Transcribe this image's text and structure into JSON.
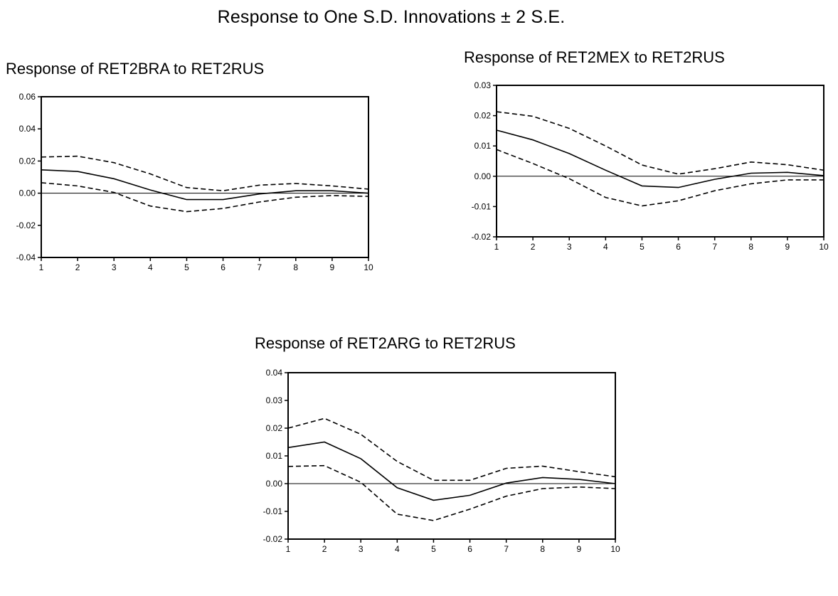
{
  "title": "Response to One S.D. Innovations ± 2 S.E.",
  "chart_data": [
    {
      "type": "line",
      "title": "Response of RET2BRA to RET2RUS",
      "x": [
        1,
        2,
        3,
        4,
        5,
        6,
        7,
        8,
        9,
        10
      ],
      "xlim": [
        1,
        10
      ],
      "ylim": [
        -0.04,
        0.06
      ],
      "yticks": [
        -0.04,
        -0.02,
        0.0,
        0.02,
        0.04,
        0.06
      ],
      "ytick_labels": [
        "-0.04",
        "-0.02",
        "0.00",
        "0.02",
        "0.04",
        "0.06"
      ],
      "xtick_labels": [
        "1",
        "2",
        "3",
        "4",
        "5",
        "6",
        "7",
        "8",
        "9",
        "10"
      ],
      "grid": false,
      "series": [
        {
          "style": "solid",
          "values": [
            0.0145,
            0.0135,
            0.009,
            0.002,
            -0.004,
            -0.004,
            -0.0005,
            0.0015,
            0.0015,
            0.0
          ]
        },
        {
          "style": "dashed",
          "values": [
            0.0225,
            0.023,
            0.019,
            0.012,
            0.0035,
            0.0015,
            0.005,
            0.006,
            0.0045,
            0.0025
          ]
        },
        {
          "style": "dashed",
          "values": [
            0.0065,
            0.0045,
            0.0005,
            -0.008,
            -0.0115,
            -0.0095,
            -0.0055,
            -0.0025,
            -0.0015,
            -0.002
          ]
        }
      ]
    },
    {
      "type": "line",
      "title": "Response of RET2MEX to RET2RUS",
      "x": [
        1,
        2,
        3,
        4,
        5,
        6,
        7,
        8,
        9,
        10
      ],
      "xlim": [
        1,
        10
      ],
      "ylim": [
        -0.02,
        0.03
      ],
      "yticks": [
        -0.02,
        -0.01,
        0.0,
        0.01,
        0.02,
        0.03
      ],
      "ytick_labels": [
        "-0.02",
        "-0.01",
        "0.00",
        "0.01",
        "0.02",
        "0.03"
      ],
      "xtick_labels": [
        "1",
        "2",
        "3",
        "4",
        "5",
        "6",
        "7",
        "8",
        "9",
        "10"
      ],
      "grid": false,
      "series": [
        {
          "style": "solid",
          "values": [
            0.0152,
            0.012,
            0.0075,
            0.002,
            -0.0032,
            -0.0037,
            -0.001,
            0.001,
            0.0013,
            0.0002
          ]
        },
        {
          "style": "dashed",
          "values": [
            0.0213,
            0.0198,
            0.0158,
            0.01,
            0.0037,
            0.0007,
            0.0025,
            0.0047,
            0.0038,
            0.002
          ]
        },
        {
          "style": "dashed",
          "values": [
            0.0088,
            0.0042,
            -0.0008,
            -0.007,
            -0.0098,
            -0.0081,
            -0.0048,
            -0.0025,
            -0.0012,
            -0.0012
          ]
        }
      ]
    },
    {
      "type": "line",
      "title": "Response of RET2ARG to RET2RUS",
      "x": [
        1,
        2,
        3,
        4,
        5,
        6,
        7,
        8,
        9,
        10
      ],
      "xlim": [
        1,
        10
      ],
      "ylim": [
        -0.02,
        0.04
      ],
      "yticks": [
        -0.02,
        -0.01,
        0.0,
        0.01,
        0.02,
        0.03,
        0.04
      ],
      "ytick_labels": [
        "-0.02",
        "-0.01",
        "0.00",
        "0.01",
        "0.02",
        "0.03",
        "0.04"
      ],
      "xtick_labels": [
        "1",
        "2",
        "3",
        "4",
        "5",
        "6",
        "7",
        "8",
        "9",
        "10"
      ],
      "grid": false,
      "series": [
        {
          "style": "solid",
          "values": [
            0.013,
            0.015,
            0.009,
            -0.0015,
            -0.006,
            -0.0042,
            0.0002,
            0.0022,
            0.0015,
            0.0
          ]
        },
        {
          "style": "dashed",
          "values": [
            0.02,
            0.0235,
            0.0178,
            0.008,
            0.0012,
            0.0012,
            0.0055,
            0.0063,
            0.0043,
            0.0025
          ]
        },
        {
          "style": "dashed",
          "values": [
            0.0062,
            0.0065,
            0.0005,
            -0.011,
            -0.0133,
            -0.0092,
            -0.0045,
            -0.0018,
            -0.0012,
            -0.0018
          ]
        }
      ]
    }
  ]
}
